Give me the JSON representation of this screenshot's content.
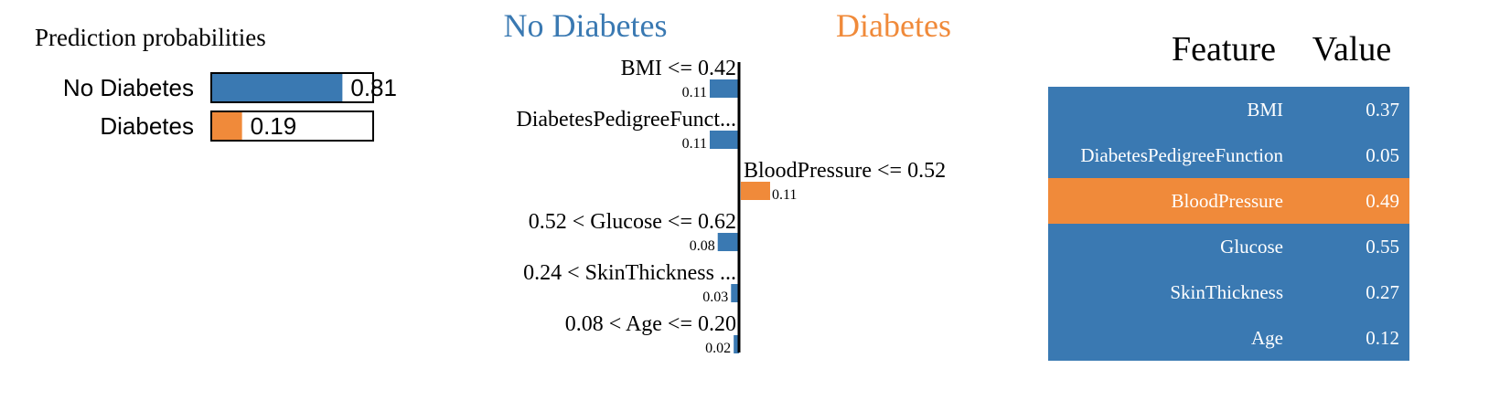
{
  "colors": {
    "no_diabetes": "#3a79b2",
    "diabetes": "#f08a3a",
    "axis": "#000000",
    "text": "#000000",
    "table_text": "#ffffff"
  },
  "chart_data": [
    {
      "type": "bar",
      "title": "Prediction probabilities",
      "orientation": "horizontal",
      "xlim": [
        0,
        1
      ],
      "categories": [
        "No Diabetes",
        "Diabetes"
      ],
      "values": [
        0.81,
        0.19
      ],
      "value_labels": [
        "0.81",
        "0.19"
      ],
      "bar_colors": [
        "#3a79b2",
        "#f08a3a"
      ]
    },
    {
      "type": "bar",
      "orientation": "horizontal",
      "class_labels": {
        "left": "No Diabetes",
        "right": "Diabetes"
      },
      "class_colors": {
        "left": "#3a79b2",
        "right": "#f08a3a"
      },
      "xlim": [
        -0.11,
        0.11
      ],
      "features": [
        {
          "label": "BMI <= 0.42",
          "weight": -0.11,
          "weight_label": "0.11"
        },
        {
          "label": "DiabetesPedigreeFunct...",
          "weight": -0.11,
          "weight_label": "0.11"
        },
        {
          "label": "BloodPressure <= 0.52",
          "weight": 0.11,
          "weight_label": "0.11"
        },
        {
          "label": "0.52 < Glucose <= 0.62",
          "weight": -0.08,
          "weight_label": "0.08"
        },
        {
          "label": "0.24 < SkinThickness ...",
          "weight": -0.03,
          "weight_label": "0.03"
        },
        {
          "label": "0.08 < Age <= 0.20",
          "weight": -0.02,
          "weight_label": "0.02"
        }
      ]
    },
    {
      "type": "table",
      "columns": [
        "Feature",
        "Value"
      ],
      "rows": [
        {
          "feature": "BMI",
          "value": "0.37",
          "class": "no_diabetes"
        },
        {
          "feature": "DiabetesPedigreeFunction",
          "value": "0.05",
          "class": "no_diabetes"
        },
        {
          "feature": "BloodPressure",
          "value": "0.49",
          "class": "diabetes"
        },
        {
          "feature": "Glucose",
          "value": "0.55",
          "class": "no_diabetes"
        },
        {
          "feature": "SkinThickness",
          "value": "0.27",
          "class": "no_diabetes"
        },
        {
          "feature": "Age",
          "value": "0.12",
          "class": "no_diabetes"
        }
      ]
    }
  ]
}
